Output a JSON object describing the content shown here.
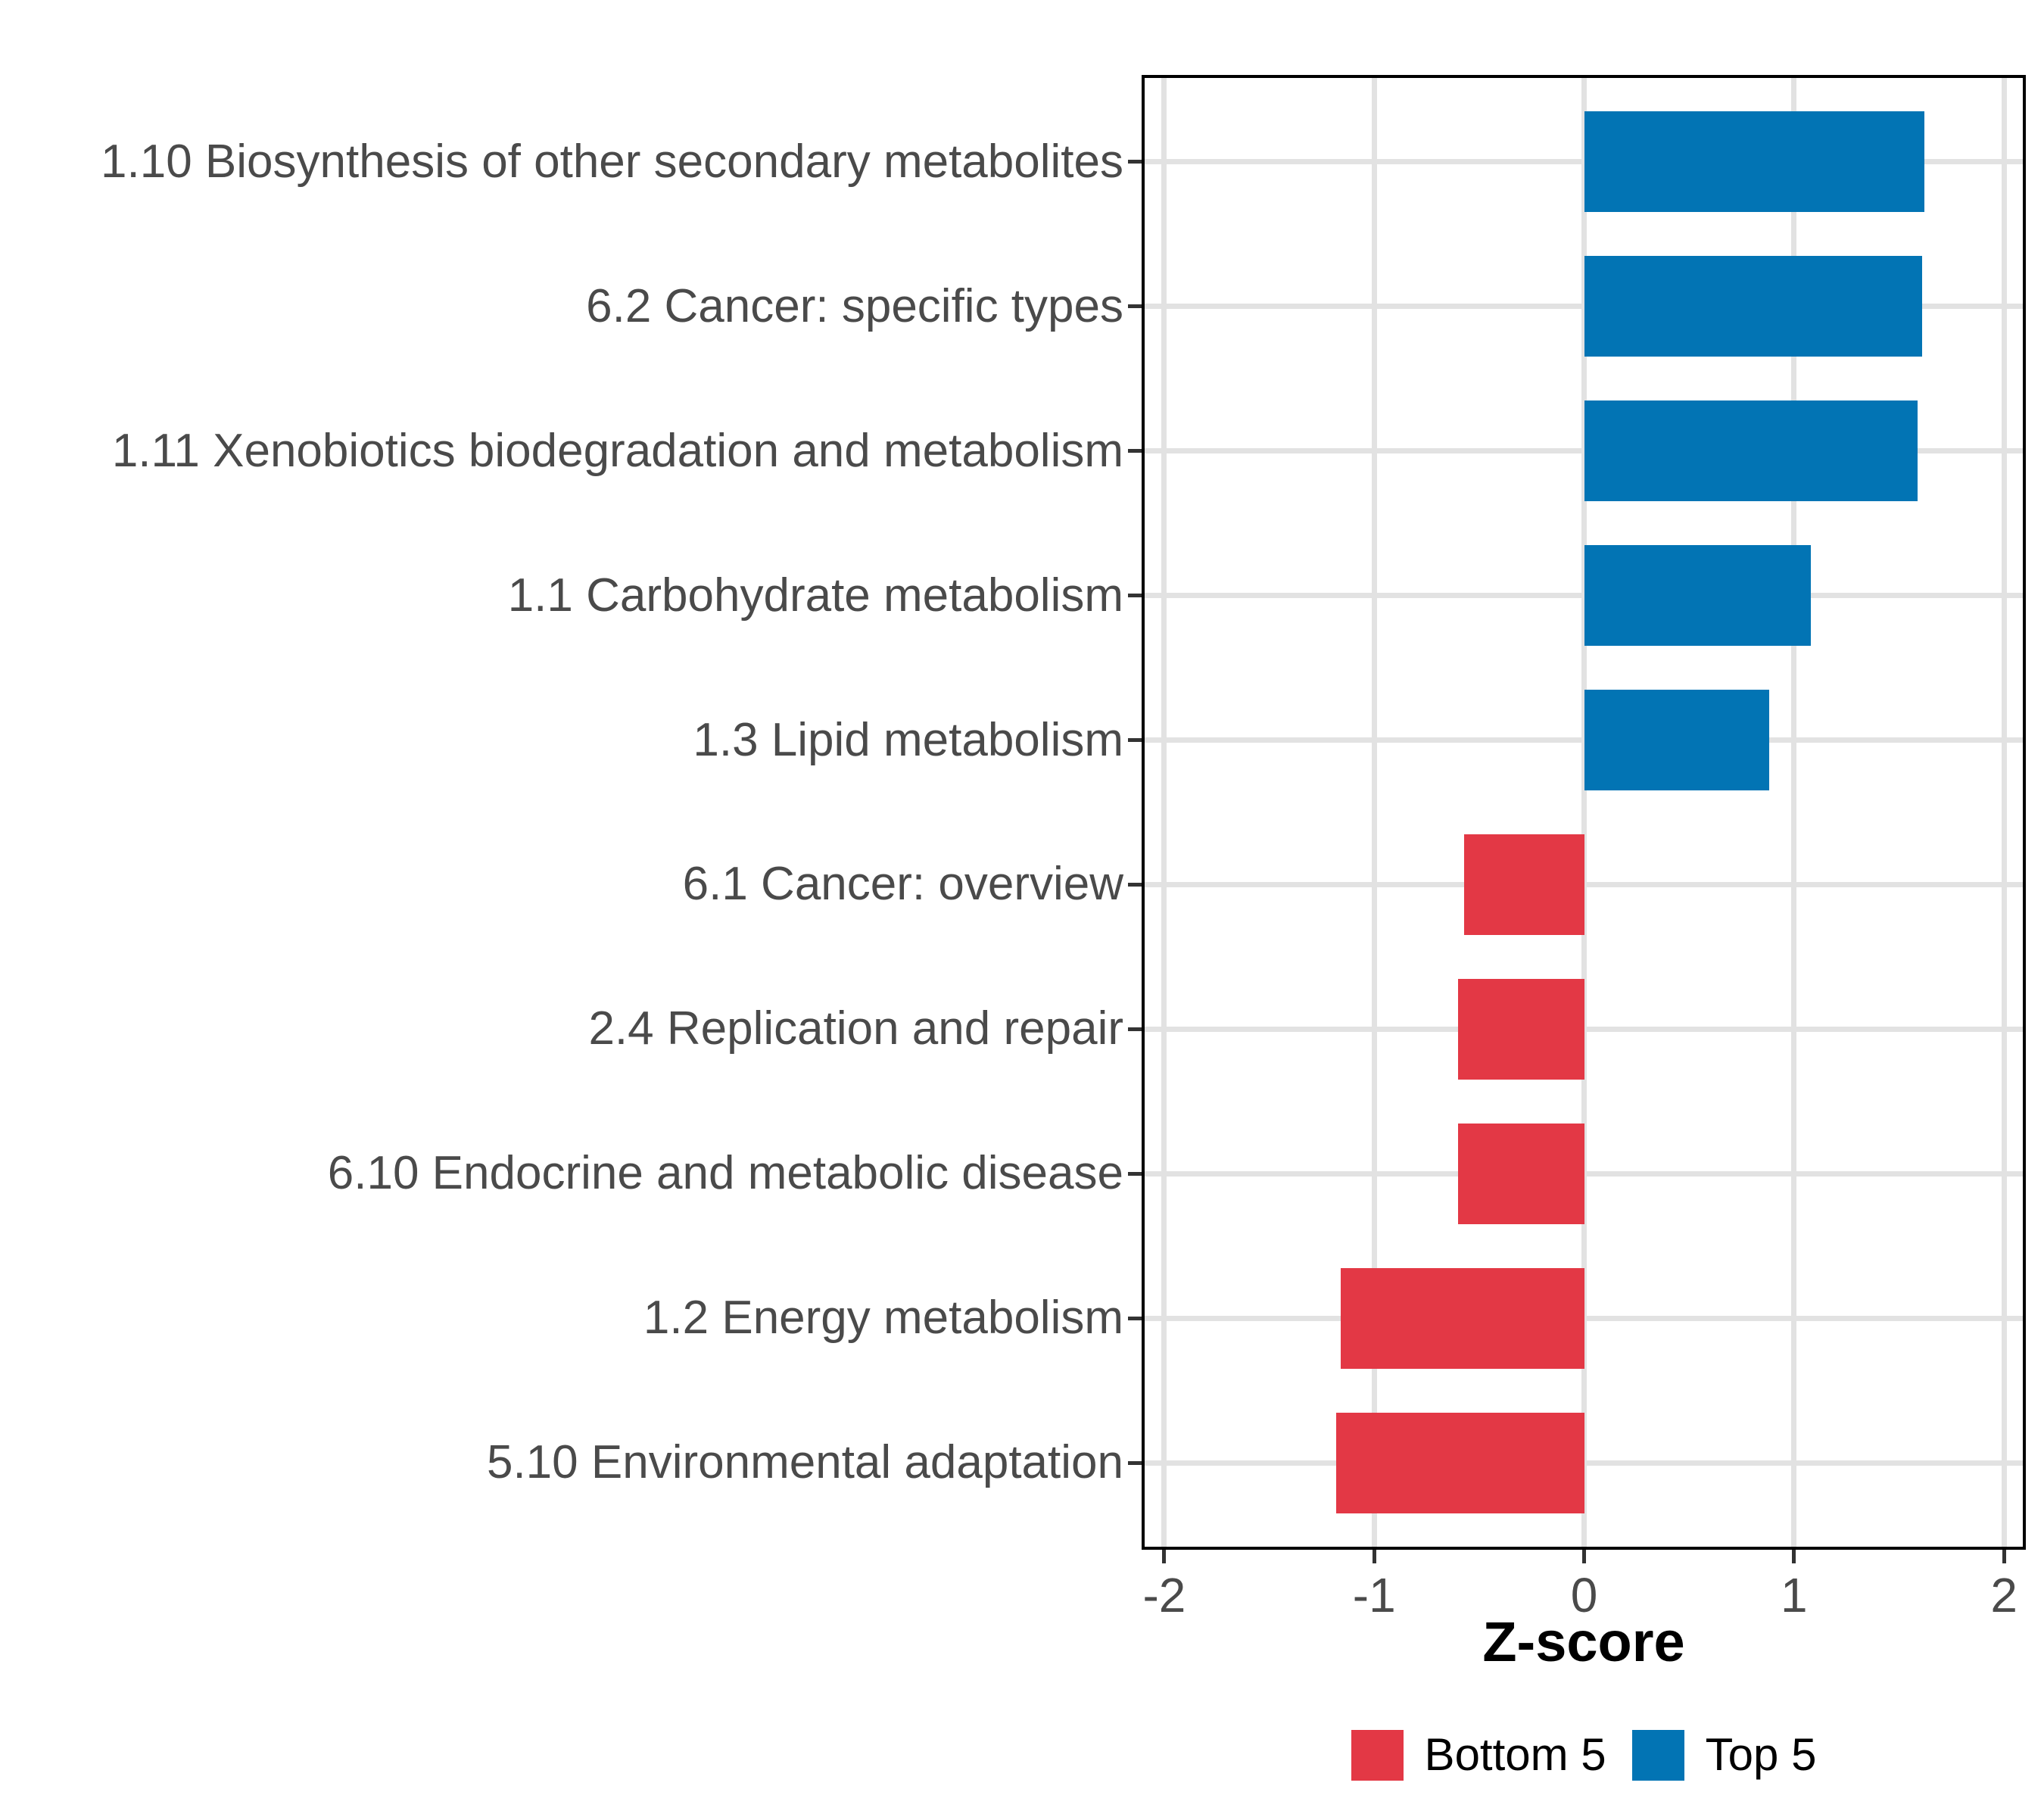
{
  "chart_data": {
    "type": "bar",
    "orientation": "horizontal",
    "title": "",
    "xlabel": "Z-score",
    "ylabel": "",
    "categories": [
      "1.10 Biosynthesis of other secondary metabolites",
      "6.2 Cancer: specific types",
      "1.11 Xenobiotics biodegradation and metabolism",
      "1.1 Carbohydrate metabolism",
      "1.3 Lipid metabolism",
      "6.1 Cancer: overview",
      "2.4 Replication and repair",
      "6.10 Endocrine and metabolic disease",
      "1.2 Energy metabolism",
      "5.10 Environmental adaptation"
    ],
    "values": [
      1.62,
      1.61,
      1.59,
      1.08,
      0.88,
      -0.57,
      -0.6,
      -0.6,
      -1.16,
      -1.18
    ],
    "groups": [
      "Top 5",
      "Top 5",
      "Top 5",
      "Top 5",
      "Top 5",
      "Bottom 5",
      "Bottom 5",
      "Bottom 5",
      "Bottom 5",
      "Bottom 5"
    ],
    "xlim": [
      -2.108,
      2.104
    ],
    "x_ticks": [
      -2,
      -1,
      0,
      1,
      2
    ],
    "x_tick_labels": [
      "-2",
      "-1",
      "0",
      "1",
      "2"
    ],
    "grid": "major-only",
    "bar_width_fraction": 0.7,
    "legend": {
      "position": "bottom",
      "entries": [
        {
          "label": "Bottom 5",
          "color": "#e33845"
        },
        {
          "label": "Top 5",
          "color": "#0274b4"
        }
      ]
    }
  }
}
